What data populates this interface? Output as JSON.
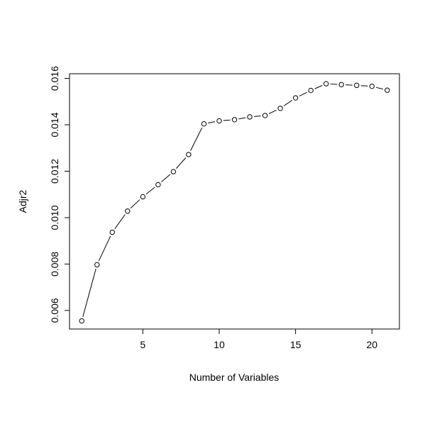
{
  "chart_data": {
    "type": "line",
    "title": "",
    "xlabel": "Number of Variables",
    "ylabel": "Adjr2",
    "xlim": [
      0.2,
      21.8
    ],
    "ylim": [
      0.0052,
      0.0162
    ],
    "x_ticks": [
      5,
      10,
      15,
      20
    ],
    "x_tick_labels": [
      "5",
      "10",
      "15",
      "20"
    ],
    "y_ticks": [
      0.006,
      0.008,
      0.01,
      0.012,
      0.014,
      0.016
    ],
    "y_tick_labels": [
      "0.006",
      "0.008",
      "0.010",
      "0.012",
      "0.014",
      "0.016"
    ],
    "grid": false,
    "legend": "none",
    "plot_style": "both points and line (open circles joined by line)",
    "colors": {
      "line": "#000000",
      "points": "#000000",
      "background": "#ffffff"
    },
    "x": [
      1,
      2,
      3,
      4,
      5,
      6,
      7,
      8,
      9,
      10,
      11,
      12,
      13,
      14,
      15,
      16,
      17,
      18,
      19,
      20,
      21
    ],
    "y": [
      0.00555,
      0.00797,
      0.00937,
      0.01028,
      0.0109,
      0.01142,
      0.01198,
      0.01272,
      0.01404,
      0.01417,
      0.01422,
      0.01434,
      0.0144,
      0.01471,
      0.01516,
      0.01548,
      0.01577,
      0.01573,
      0.0157,
      0.01566,
      0.01549
    ]
  }
}
